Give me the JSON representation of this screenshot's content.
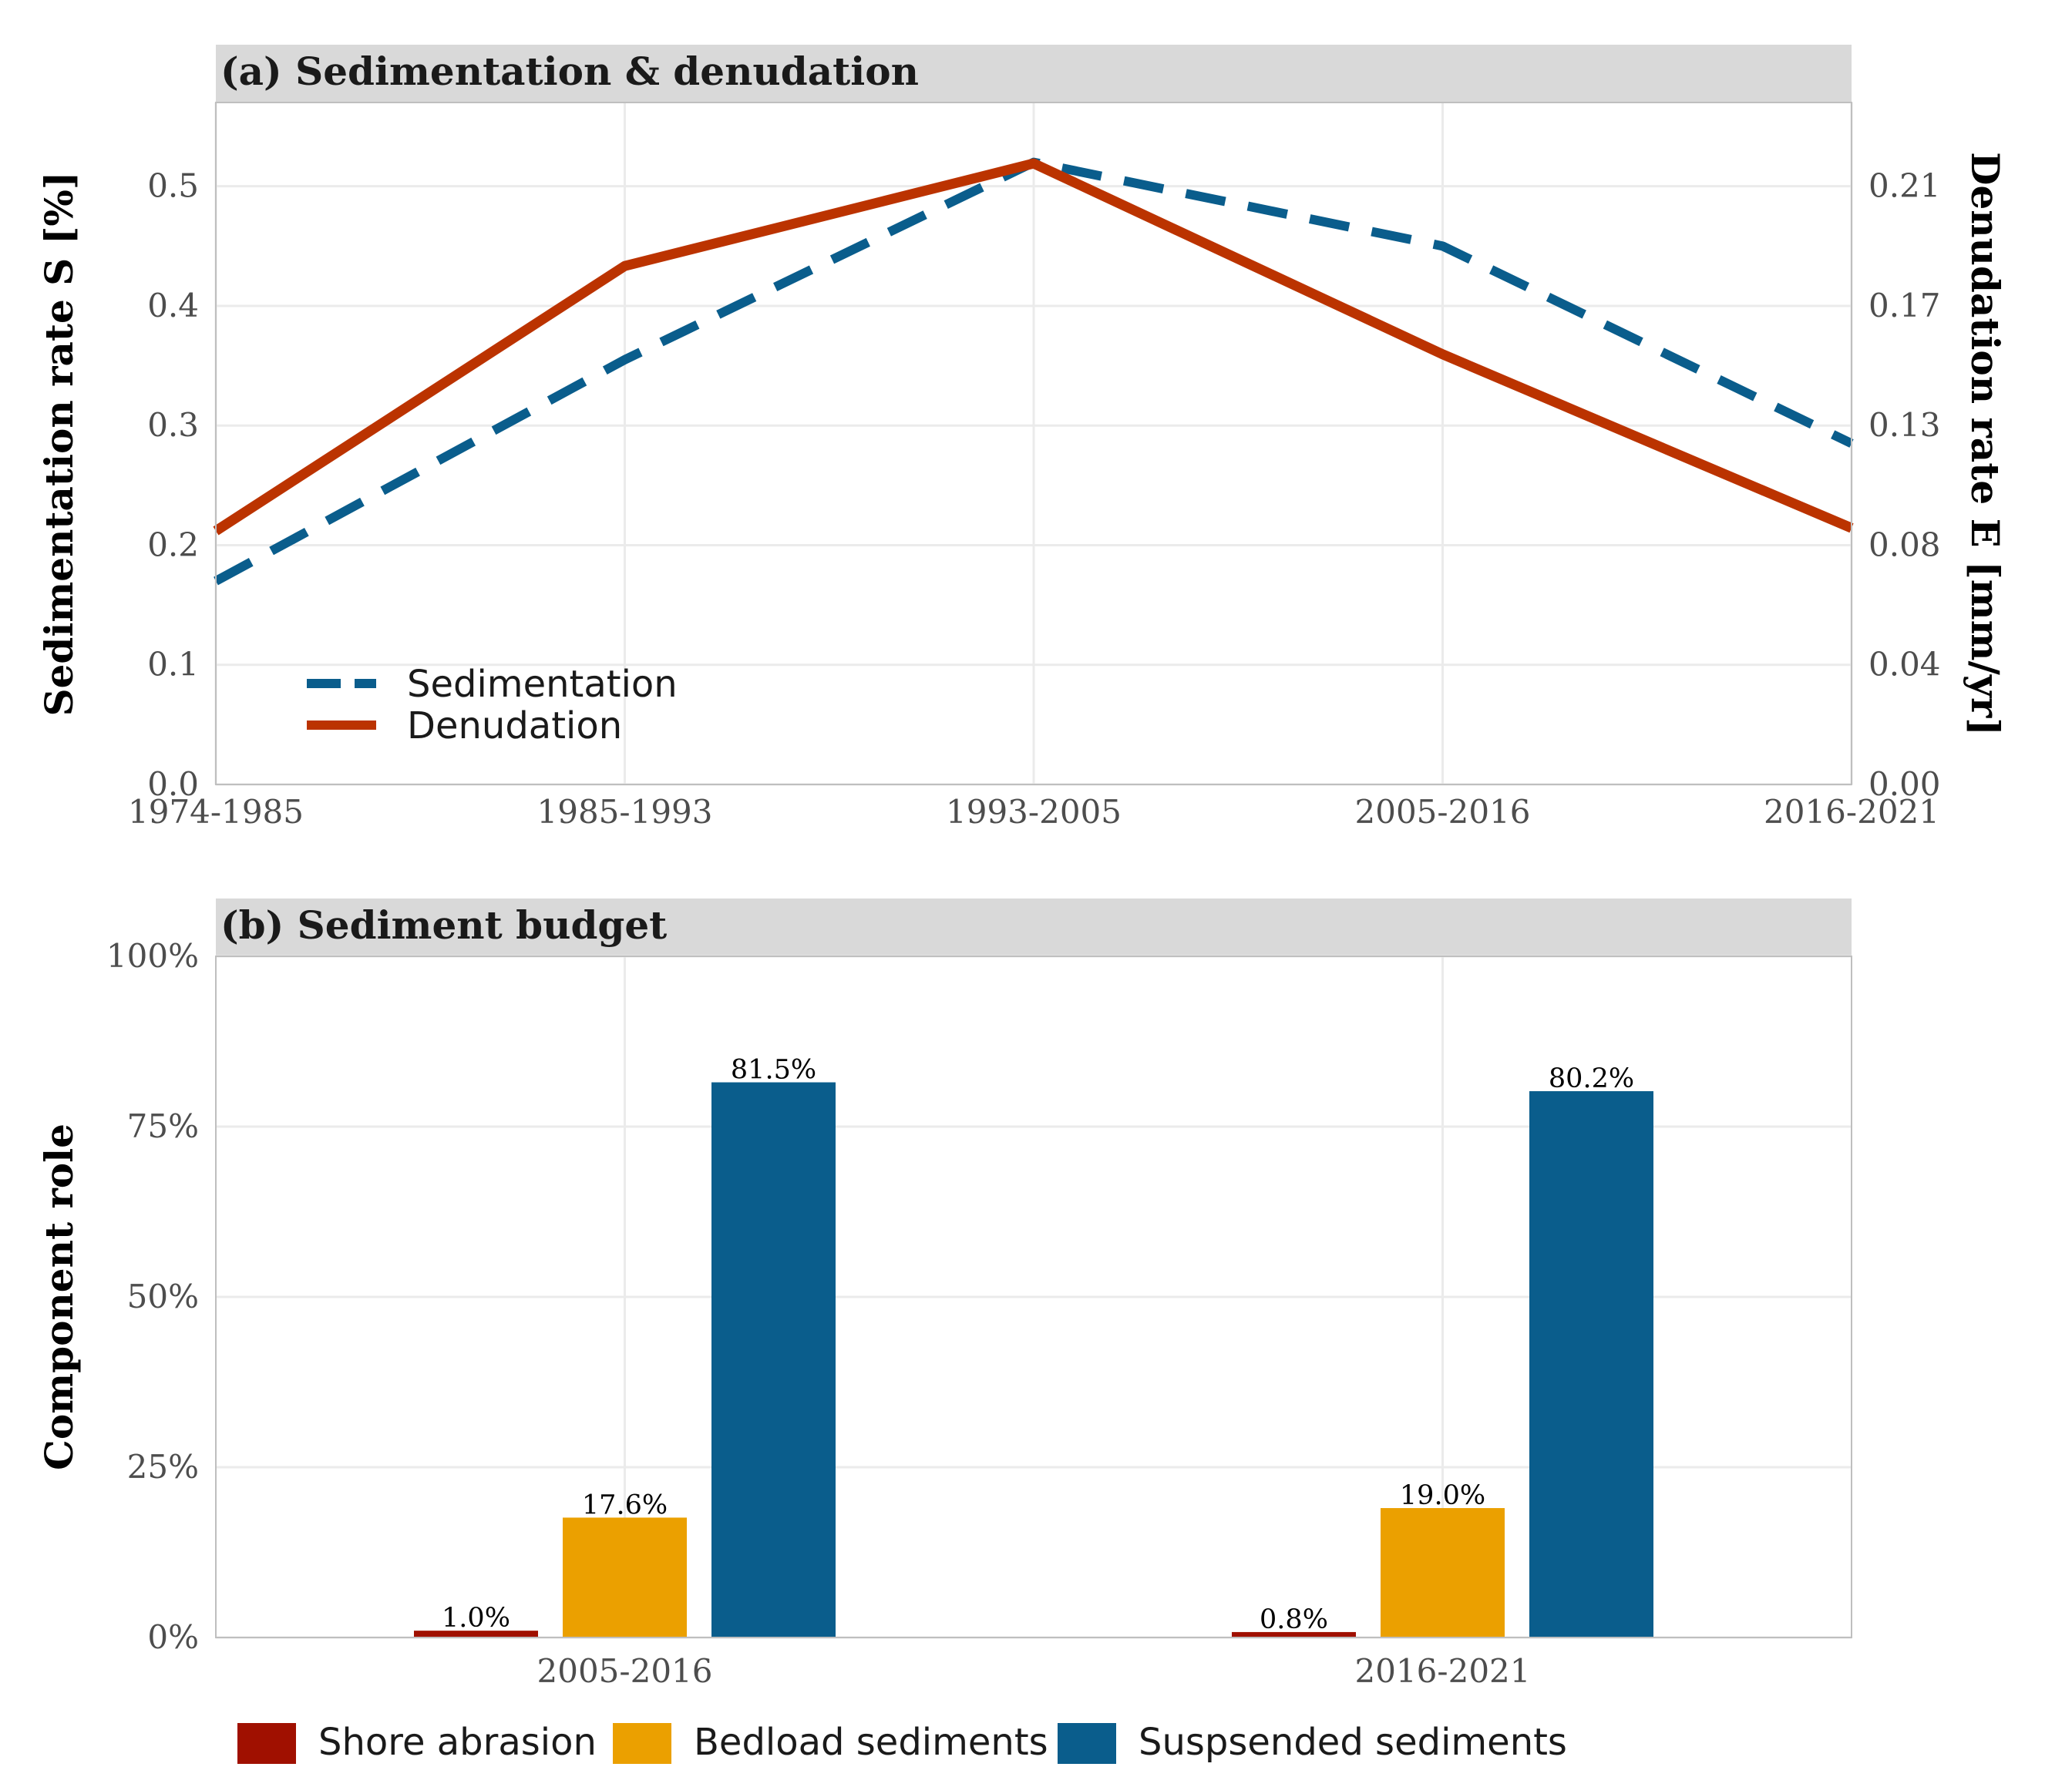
{
  "chart_data": [
    {
      "type": "line",
      "title": "(a) Sedimentation & denudation",
      "categories": [
        "1974-1985",
        "1985-1993",
        "1993-2005",
        "2005-2016",
        "2016-2021"
      ],
      "ylabel": "Sedimentation rate S [%]",
      "ylabel_right": "Denudation rate E [mm/yr]",
      "ylim": [
        0,
        0.57
      ],
      "yticks": [
        "0.0",
        "0.1",
        "0.2",
        "0.3",
        "0.4",
        "0.5"
      ],
      "ylim_right": [
        0,
        0.2394
      ],
      "yticks_right": [
        "0.00",
        "0.04",
        "0.08",
        "0.13",
        "0.17",
        "0.21"
      ],
      "legend_position": "bottom-left",
      "grid": true,
      "series": [
        {
          "name": "Sedimentation",
          "axis": "left",
          "style": "dashed",
          "color": "#0a5d8c",
          "values": [
            0.17,
            0.355,
            0.52,
            0.45,
            0.285
          ]
        },
        {
          "name": "Denudation",
          "axis": "right",
          "style": "solid",
          "color": "#bb3300",
          "values": [
            0.089,
            0.182,
            0.218,
            0.151,
            0.09
          ]
        }
      ]
    },
    {
      "type": "bar",
      "title": "(b) Sediment budget",
      "categories": [
        "2005-2016",
        "2016-2021"
      ],
      "ylabel": "Component role",
      "ylim": [
        0,
        100
      ],
      "yticks": [
        "0%",
        "25%",
        "50%",
        "75%",
        "100%"
      ],
      "legend_position": "bottom",
      "grid": true,
      "series": [
        {
          "name": "Shore abrasion",
          "color": "#a01000",
          "values": [
            1.0,
            0.8
          ],
          "labels": [
            "1.0%",
            "0.8%"
          ]
        },
        {
          "name": "Bedload sediments",
          "color": "#eba000",
          "values": [
            17.6,
            19.0
          ],
          "labels": [
            "17.6%",
            "19.0%"
          ]
        },
        {
          "name": "Suspsended sediments",
          "color": "#0a5d8c",
          "values": [
            81.5,
            80.2
          ],
          "labels": [
            "81.5%",
            "80.2%"
          ]
        }
      ]
    }
  ]
}
